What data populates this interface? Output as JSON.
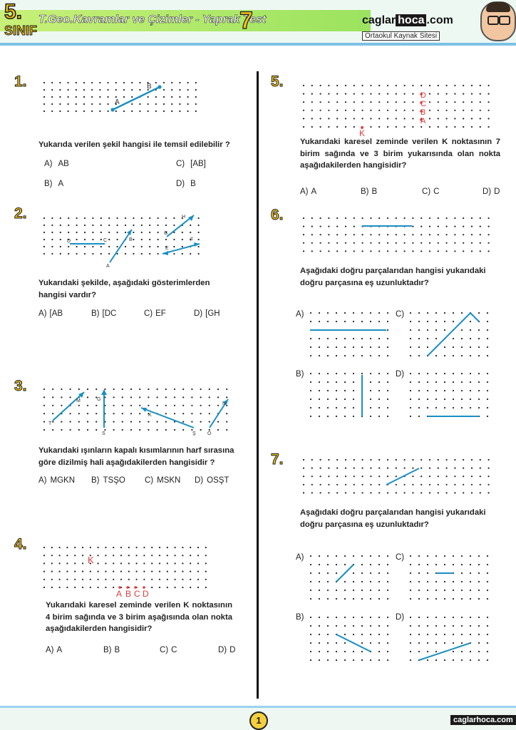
{
  "header": {
    "grade": "5.",
    "grade_sub": "SINIF",
    "title": "T.Geo.Kavramlar ve Çizimler - Yaprak Test",
    "test_no": "7",
    "brand_a": "caglar",
    "brand_b": "hoca",
    "brand_c": ".com",
    "brand_sub": "Ortaokul Kaynak Sitesi"
  },
  "q1": {
    "num": "1.",
    "text": "Yukarıda verilen şekil hangisi ile temsil edilebilir ?",
    "opts": [
      {
        "l": "A)",
        "t": "AB"
      },
      {
        "l": "C)",
        "t": "[AB]"
      },
      {
        "l": "B)",
        "t": "A"
      },
      {
        "l": "D)",
        "t": "B"
      }
    ],
    "labels": {
      "a": "A",
      "b": "B"
    }
  },
  "q2": {
    "num": "2.",
    "text": "Yukarıdaki şekilde, aşağıdaki gösterimlerden hangisi vardır?",
    "opts": [
      {
        "l": "A)",
        "t": "[AB"
      },
      {
        "l": "B)",
        "t": "[DC"
      },
      {
        "l": "C)",
        "t": "EF"
      },
      {
        "l": "D)",
        "t": "[GH"
      }
    ],
    "labels": {
      "d": "D",
      "c": "C",
      "a": "A",
      "b": "B",
      "g": "G",
      "h": "H",
      "e": "E",
      "f": "F"
    }
  },
  "q3": {
    "num": "3.",
    "text": "Yukarıdaki ışınların kapalı kısımlarının harf sırasına göre dizilmiş hali aşağıdakilerden hangisidir ?",
    "opts": [
      {
        "l": "A)",
        "t": "MGKN"
      },
      {
        "l": "B)",
        "t": "TSŞO"
      },
      {
        "l": "C)",
        "t": "MSKN"
      },
      {
        "l": "D)",
        "t": "OSŞT"
      }
    ],
    "labels": {
      "t": "T",
      "m": "M",
      "g": "G",
      "s": "S",
      "k": "K",
      "sh": "Ş",
      "o": "O",
      "n": "N"
    }
  },
  "q4": {
    "num": "4.",
    "text": "Yukarıdaki karesel zeminde verilen K noktasının 4 birim sağında ve 3 birim aşağısında olan nokta aşağıdakilerden hangisidir?",
    "opts": [
      {
        "l": "A)",
        "t": "A"
      },
      {
        "l": "B)",
        "t": "B"
      },
      {
        "l": "C)",
        "t": "C"
      },
      {
        "l": "D)",
        "t": "D"
      }
    ],
    "labels": {
      "k": "K",
      "a": "A",
      "b": "B",
      "c": "C",
      "d": "D"
    }
  },
  "q5": {
    "num": "5.",
    "text": "Yukarıdaki karesel zeminde verilen K noktasının 7 birim sağında ve 3 birim yukarısında olan nokta aşağıdakilerden hangisidir?",
    "opts": [
      {
        "l": "A)",
        "t": "A"
      },
      {
        "l": "B)",
        "t": "B"
      },
      {
        "l": "C)",
        "t": "C"
      },
      {
        "l": "D)",
        "t": "D"
      }
    ],
    "labels": {
      "k": "K",
      "a": "A",
      "b": "B",
      "c": "C",
      "d": "D"
    }
  },
  "q6": {
    "num": "6.",
    "text": "Aşağıdaki doğru parçalarıdan hangisi yukarıdaki doğru parçasına eş uzunluktadır?",
    "choice_labels": [
      "A)",
      "B)",
      "C)",
      "D)"
    ]
  },
  "q7": {
    "num": "7.",
    "text": "Aşağıdaki doğru parçalarıdan hangisi yukarıdaki doğru parçasına eş uzunluktadır?",
    "choice_labels": [
      "A)",
      "B)",
      "C)",
      "D)"
    ]
  },
  "footer": {
    "page": "1",
    "site": "caglarhoca.com"
  },
  "colors": {
    "accent": "#1a8fc4",
    "label": "#e23b3b",
    "title": "#f4c21c"
  }
}
